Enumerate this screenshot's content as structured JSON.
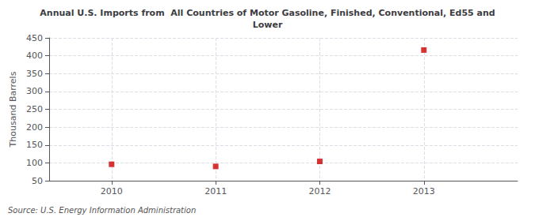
{
  "chart_data": {
    "type": "scatter",
    "title": "Annual U.S. Imports from  All Countries of Motor Gasoline, Finished, Conventional, Ed55 and\nLower",
    "ylabel": "Thousand Barrels",
    "source": "Source: U.S. Energy Information Administration",
    "x": [
      2010,
      2011,
      2012,
      2013
    ],
    "values": [
      96,
      90,
      104,
      416
    ],
    "color": "#cc0000",
    "marker": "square",
    "xlim": [
      2009.4,
      2013.9
    ],
    "xticks": [
      2010,
      2011,
      2012,
      2013
    ],
    "ylim": [
      50,
      450
    ],
    "yticks": [
      50,
      100,
      150,
      200,
      250,
      300,
      350,
      400,
      450
    ],
    "grid": true
  }
}
